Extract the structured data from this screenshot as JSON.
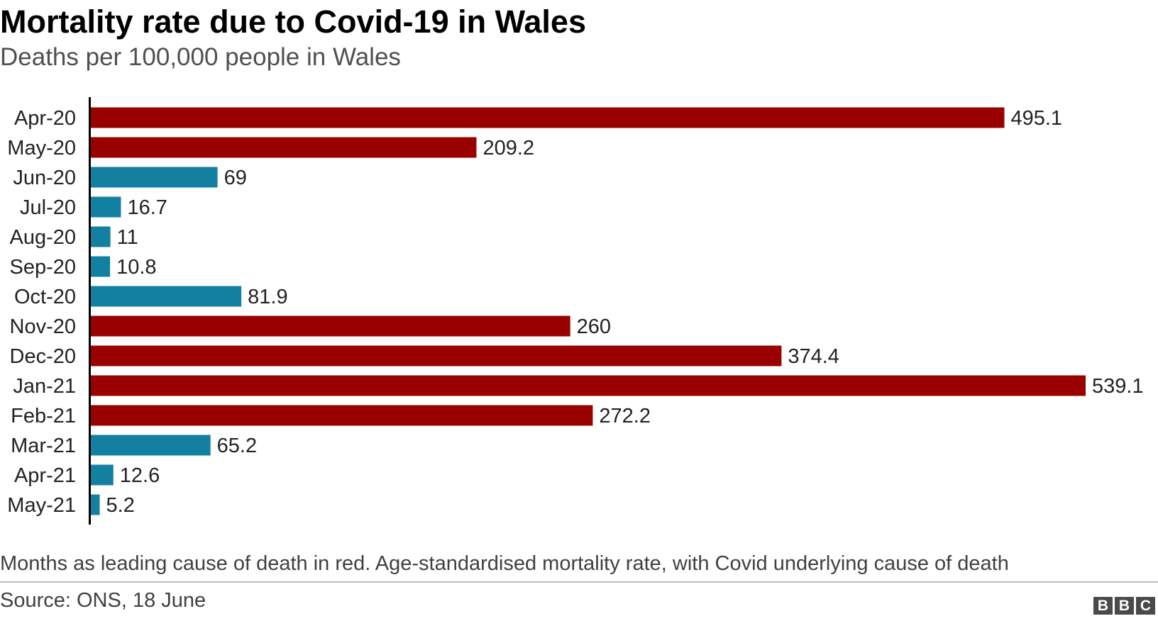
{
  "header": {
    "title": "Mortality rate due to Covid-19 in Wales",
    "subtitle": "Deaths per 100,000 people in Wales"
  },
  "footer": {
    "note": "Months as leading cause of death in red. Age-standardised mortality rate, with Covid underlying cause of death",
    "source": "Source: ONS, 18 June",
    "logo_letters": [
      "B",
      "B",
      "C"
    ]
  },
  "colors": {
    "leading": "#990000",
    "other": "#1380A1",
    "axis": "#000000"
  },
  "chart_data": {
    "type": "bar",
    "orientation": "horizontal",
    "title": "Mortality rate due to Covid-19 in Wales",
    "subtitle": "Deaths per 100,000 people in Wales",
    "xlabel": "",
    "ylabel": "",
    "xlim": [
      0,
      539.1
    ],
    "grid": false,
    "categories": [
      "Apr-20",
      "May-20",
      "Jun-20",
      "Jul-20",
      "Aug-20",
      "Sep-20",
      "Oct-20",
      "Nov-20",
      "Dec-20",
      "Jan-21",
      "Feb-21",
      "Mar-21",
      "Apr-21",
      "May-21"
    ],
    "values": [
      495.1,
      209.2,
      69,
      16.7,
      11,
      10.8,
      81.9,
      260,
      374.4,
      539.1,
      272.2,
      65.2,
      12.6,
      5.2
    ],
    "value_labels": [
      "495.1",
      "209.2",
      "69",
      "16.7",
      "11",
      "10.8",
      "81.9",
      "260",
      "374.4",
      "539.1",
      "272.2",
      "65.2",
      "12.6",
      "5.2"
    ],
    "leading_cause": [
      true,
      true,
      false,
      false,
      false,
      false,
      false,
      true,
      true,
      true,
      true,
      false,
      false,
      false
    ]
  }
}
